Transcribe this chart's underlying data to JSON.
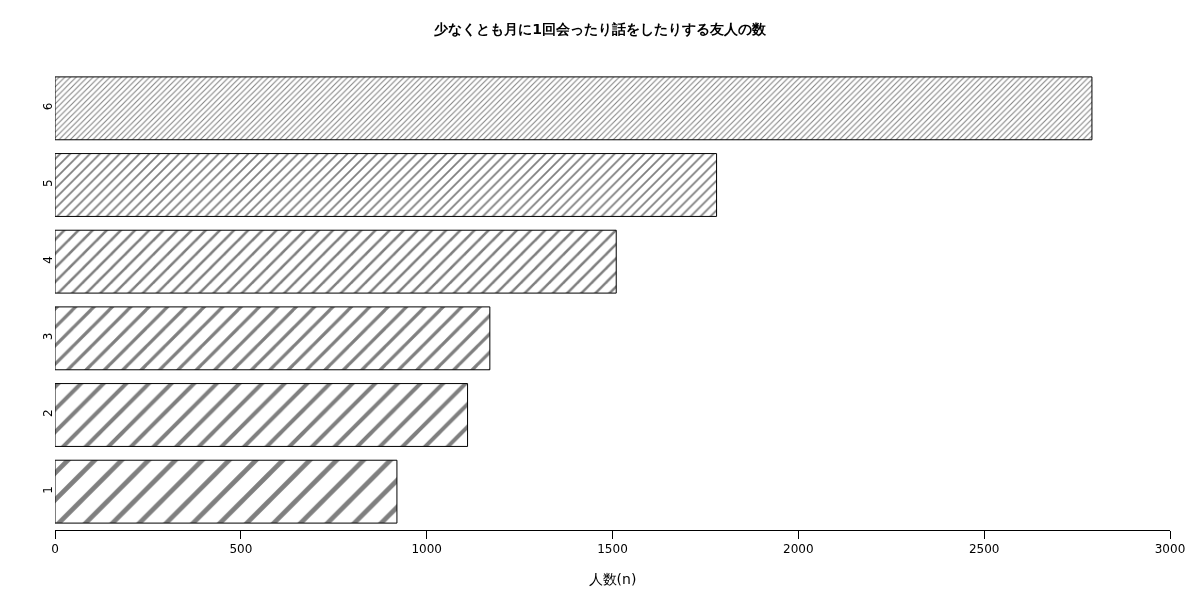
{
  "chart_data": {
    "type": "bar",
    "orientation": "horizontal",
    "title": "少なくとも月に1回会ったり話をしたりする友人の数",
    "xlabel": "人数(n)",
    "categories": [
      "6",
      "5",
      "4",
      "3",
      "2",
      "1"
    ],
    "values": [
      2790,
      1780,
      1510,
      1170,
      1110,
      920
    ],
    "color": "#000000",
    "xlim": [
      0,
      3000
    ],
    "xticks": [
      0,
      500,
      1000,
      1500,
      2000,
      2500,
      3000
    ],
    "legend": false
  }
}
